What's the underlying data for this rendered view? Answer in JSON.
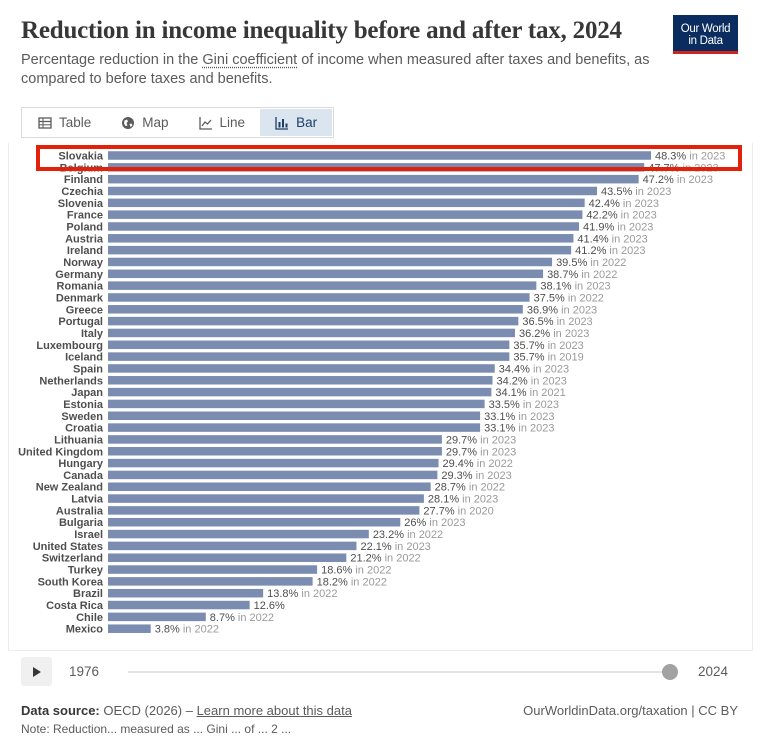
{
  "header": {
    "title": "Reduction in income inequality before and after tax, 2024",
    "subtitle_pre": "Percentage reduction in the ",
    "subtitle_link": "Gini coefficient",
    "subtitle_post": " of income when measured after taxes and benefits, as compared to before taxes and benefits.",
    "logo_line1": "Our World",
    "logo_line2": "in Data"
  },
  "tabs": [
    {
      "label": "Table",
      "icon": "table-icon",
      "active": false
    },
    {
      "label": "Map",
      "icon": "globe-icon",
      "active": false
    },
    {
      "label": "Line",
      "icon": "line-chart-icon",
      "active": false
    },
    {
      "label": "Bar",
      "icon": "bar-chart-icon",
      "active": true
    }
  ],
  "chart_data": {
    "type": "bar",
    "orientation": "horizontal",
    "bar_color": "#7a8cb0",
    "highlight_color": "#e3210b",
    "highlighted_category": "Slovakia",
    "xlim": [
      0,
      48.3
    ],
    "categories": [
      "Slovakia",
      "Belgium",
      "Finland",
      "Czechia",
      "Slovenia",
      "France",
      "Poland",
      "Austria",
      "Ireland",
      "Norway",
      "Germany",
      "Romania",
      "Denmark",
      "Greece",
      "Portugal",
      "Italy",
      "Luxembourg",
      "Iceland",
      "Spain",
      "Netherlands",
      "Japan",
      "Estonia",
      "Sweden",
      "Croatia",
      "Lithuania",
      "United Kingdom",
      "Hungary",
      "Canada",
      "New Zealand",
      "Latvia",
      "Australia",
      "Bulgaria",
      "Israel",
      "United States",
      "Switzerland",
      "Turkey",
      "South Korea",
      "Brazil",
      "Costa Rica",
      "Chile",
      "Mexico"
    ],
    "values": [
      48.3,
      47.7,
      47.2,
      43.5,
      42.4,
      42.2,
      41.9,
      41.4,
      41.2,
      39.5,
      38.7,
      38.1,
      37.5,
      36.9,
      36.5,
      36.2,
      35.7,
      35.7,
      34.4,
      34.2,
      34.1,
      33.5,
      33.1,
      33.1,
      29.7,
      29.7,
      29.4,
      29.3,
      28.7,
      28.1,
      27.7,
      26,
      23.2,
      22.1,
      21.2,
      18.6,
      18.2,
      13.8,
      12.6,
      8.7,
      3.8
    ],
    "value_labels": [
      "48.3%",
      "47.7%",
      "47.2%",
      "43.5%",
      "42.4%",
      "42.2%",
      "41.9%",
      "41.4%",
      "41.2%",
      "39.5%",
      "38.7%",
      "38.1%",
      "37.5%",
      "36.9%",
      "36.5%",
      "36.2%",
      "35.7%",
      "35.7%",
      "34.4%",
      "34.2%",
      "34.1%",
      "33.5%",
      "33.1%",
      "33.1%",
      "29.7%",
      "29.7%",
      "29.4%",
      "29.3%",
      "28.7%",
      "28.1%",
      "27.7%",
      "26%",
      "23.2%",
      "22.1%",
      "21.2%",
      "18.6%",
      "18.2%",
      "13.8%",
      "12.6%",
      "8.7%",
      "3.8%"
    ],
    "year_labels": [
      "in 2023",
      "in 2023",
      "in 2023",
      "in 2023",
      "in 2023",
      "in 2023",
      "in 2023",
      "in 2023",
      "in 2023",
      "in 2022",
      "in 2022",
      "in 2023",
      "in 2022",
      "in 2023",
      "in 2023",
      "in 2023",
      "in 2023",
      "in 2019",
      "in 2023",
      "in 2023",
      "in 2021",
      "in 2023",
      "in 2023",
      "in 2023",
      "in 2023",
      "in 2023",
      "in 2022",
      "in 2023",
      "in 2022",
      "in 2023",
      "in 2020",
      "in 2023",
      "in 2022",
      "in 2023",
      "in 2022",
      "in 2022",
      "in 2022",
      "in 2022",
      "",
      "in 2022",
      "in 2022"
    ]
  },
  "timeline": {
    "start_label": "1976",
    "end_label": "2024",
    "position": 1.0
  },
  "footer": {
    "source_label": "Data source:",
    "source_text": " OECD (2026) – ",
    "learn_more": "Learn more about this data",
    "right_text": "OurWorldinData.org/taxation | CC BY",
    "note": "Note: Reduction... measured as ... Gini ... of ... 2 ..."
  }
}
